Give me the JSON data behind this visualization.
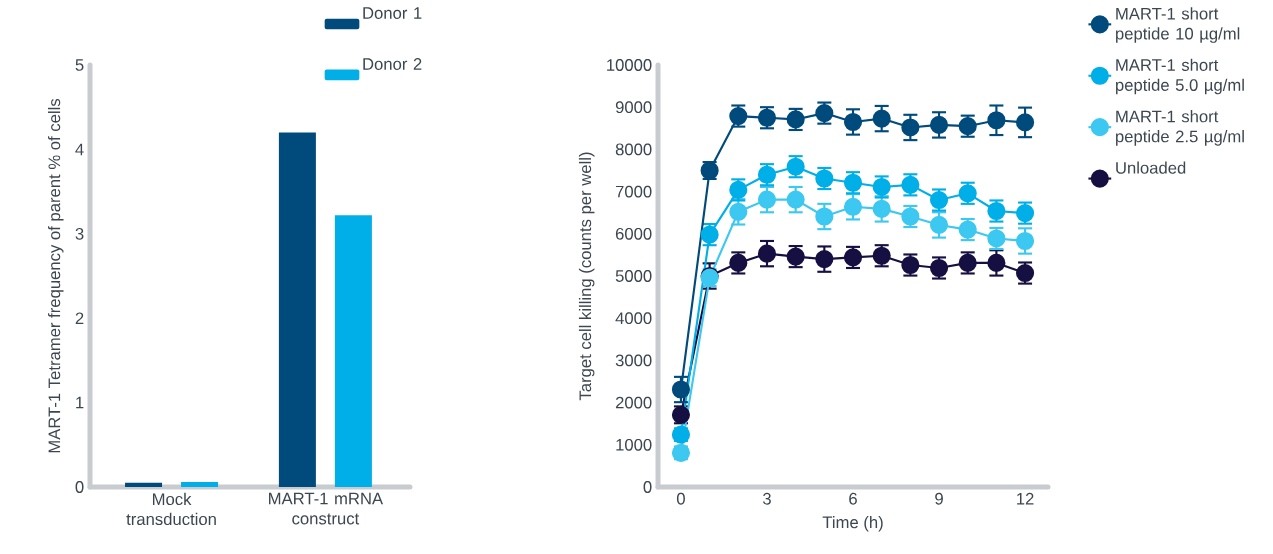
{
  "chart_data": [
    {
      "type": "bar",
      "ylabel": "MART-1 Tetramer frequency of parent % of cells",
      "categories": [
        "Mock transduction",
        "MART-1 mRNA construct"
      ],
      "ylim": [
        0,
        5
      ],
      "yticks": [
        0,
        1,
        2,
        3,
        4,
        5
      ],
      "legend": "top",
      "series": [
        {
          "name": "Donor 1",
          "color": "#004a7c",
          "values": [
            0.05,
            4.2
          ]
        },
        {
          "name": "Donor 2",
          "color": "#00aee8",
          "values": [
            0.06,
            3.22
          ]
        }
      ]
    },
    {
      "type": "line",
      "xlabel": "Time (h)",
      "ylabel": "Target cell killing (counts per well)",
      "xlim": [
        -0.8,
        12.8
      ],
      "xticks": [
        0,
        3,
        6,
        9,
        12
      ],
      "ylim": [
        0,
        10000
      ],
      "yticks": [
        0,
        1000,
        2000,
        3000,
        4000,
        5000,
        6000,
        7000,
        8000,
        9000,
        10000
      ],
      "legend": "right",
      "marker": "circle",
      "x": [
        0,
        1,
        2,
        3,
        4,
        5,
        6,
        7,
        8,
        9,
        10,
        11,
        12
      ],
      "series": [
        {
          "name": "MART-1 short peptide 10 µg/ml",
          "color": "#004a7c",
          "values": [
            2310,
            7500,
            8790,
            8750,
            8710,
            8860,
            8650,
            8730,
            8520,
            8580,
            8550,
            8690,
            8640
          ],
          "errors": [
            300,
            200,
            250,
            250,
            250,
            250,
            300,
            300,
            300,
            300,
            250,
            350,
            350
          ]
        },
        {
          "name": "MART-1 short peptide 5.0 µg/ml",
          "color": "#00aee8",
          "values": [
            1240,
            5980,
            7040,
            7400,
            7590,
            7310,
            7210,
            7110,
            7160,
            6800,
            6960,
            6540,
            6490
          ],
          "errors": [
            150,
            250,
            250,
            250,
            250,
            250,
            250,
            250,
            250,
            250,
            250,
            250,
            250
          ]
        },
        {
          "name": "MART-1 short peptide 2.5 µg/ml",
          "color": "#3cc8f0",
          "values": [
            810,
            4960,
            6520,
            6810,
            6810,
            6410,
            6640,
            6590,
            6410,
            6210,
            6100,
            5890,
            5830
          ],
          "errors": [
            150,
            200,
            300,
            300,
            300,
            300,
            300,
            300,
            250,
            300,
            250,
            250,
            300
          ]
        },
        {
          "name": "Unloaded",
          "color": "#160f42",
          "values": [
            1710,
            5000,
            5310,
            5530,
            5460,
            5400,
            5440,
            5480,
            5260,
            5190,
            5310,
            5310,
            5070
          ],
          "errors": [
            200,
            300,
            250,
            300,
            250,
            300,
            250,
            250,
            250,
            250,
            250,
            300,
            250
          ]
        }
      ]
    }
  ]
}
